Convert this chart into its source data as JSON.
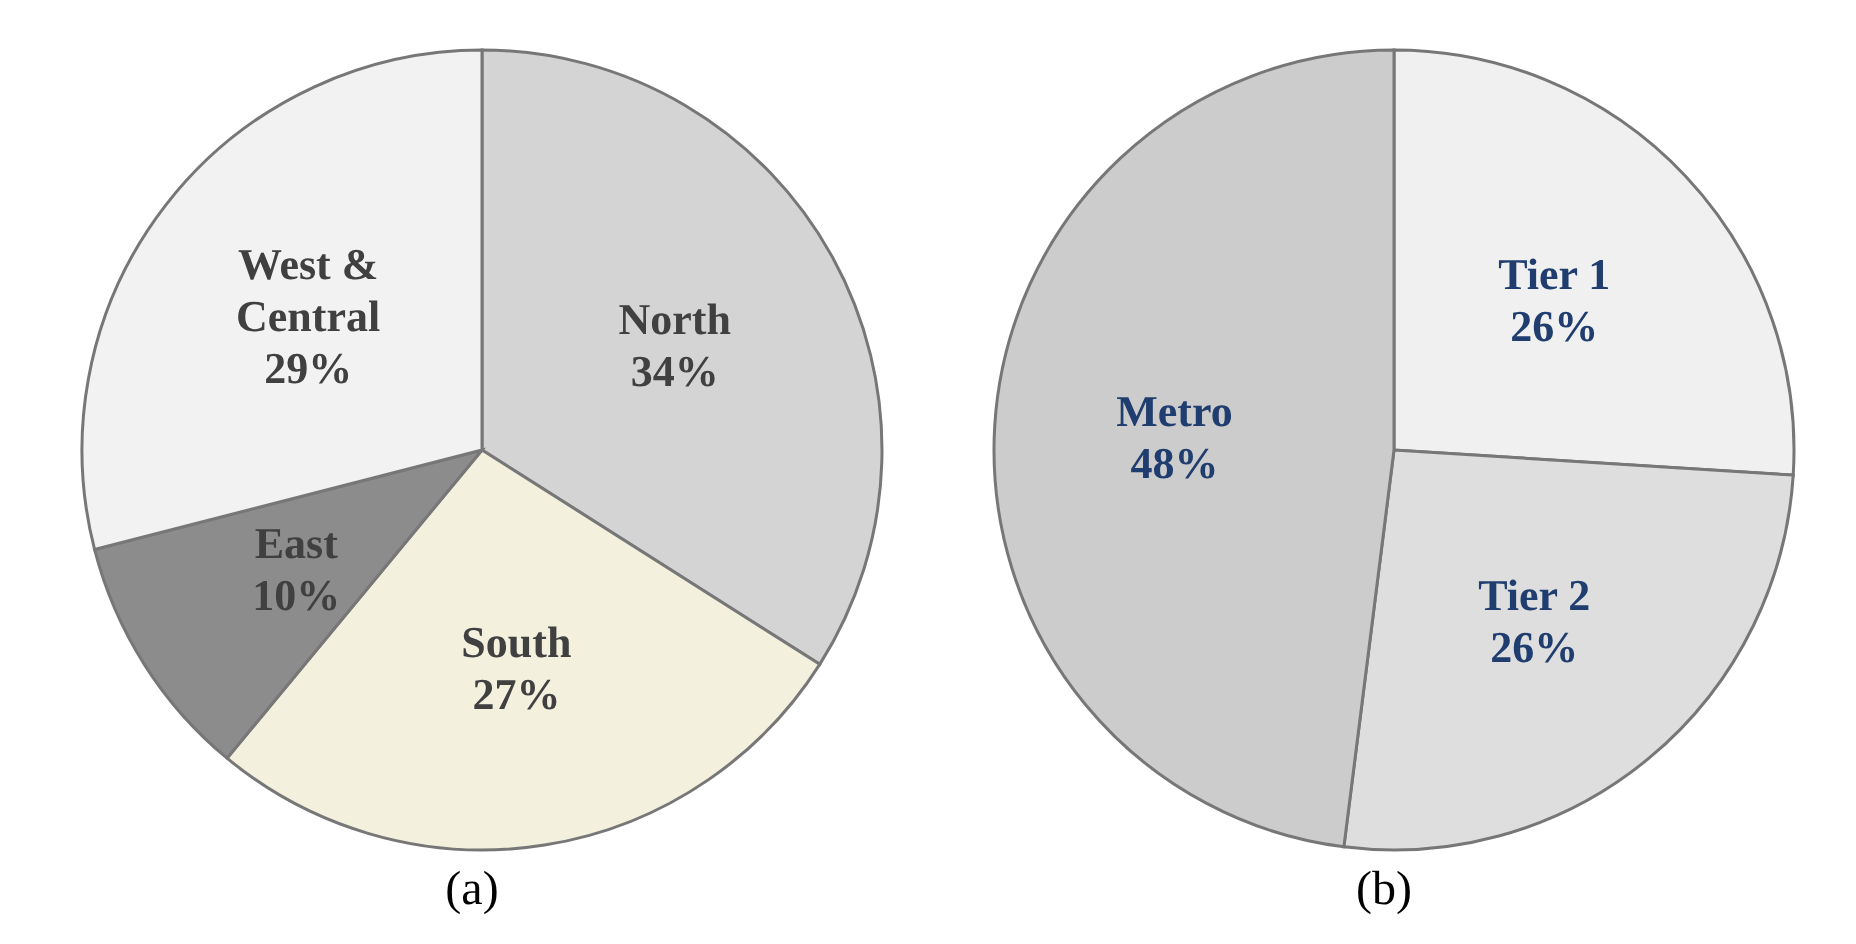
{
  "chart_data": [
    {
      "type": "pie",
      "title": "(a)",
      "categories": [
        "North",
        "South",
        "East",
        "West & Central"
      ],
      "values": [
        34,
        27,
        10,
        29
      ],
      "colors": [
        "#d4d4d4",
        "#f3f0de",
        "#8c8c8c",
        "#f2f2f2"
      ],
      "data_labels": true,
      "value_labels": [
        "34%",
        "27%",
        "10%",
        "29%"
      ]
    },
    {
      "type": "pie",
      "title": "(b)",
      "categories": [
        "Tier 1",
        "Tier 2",
        "Metro"
      ],
      "values": [
        26,
        26,
        48
      ],
      "colors": [
        "#f0f0f0",
        "#dedede",
        "#cccccc"
      ],
      "data_labels": true,
      "value_labels": [
        "26%",
        "26%",
        "48%"
      ]
    }
  ]
}
